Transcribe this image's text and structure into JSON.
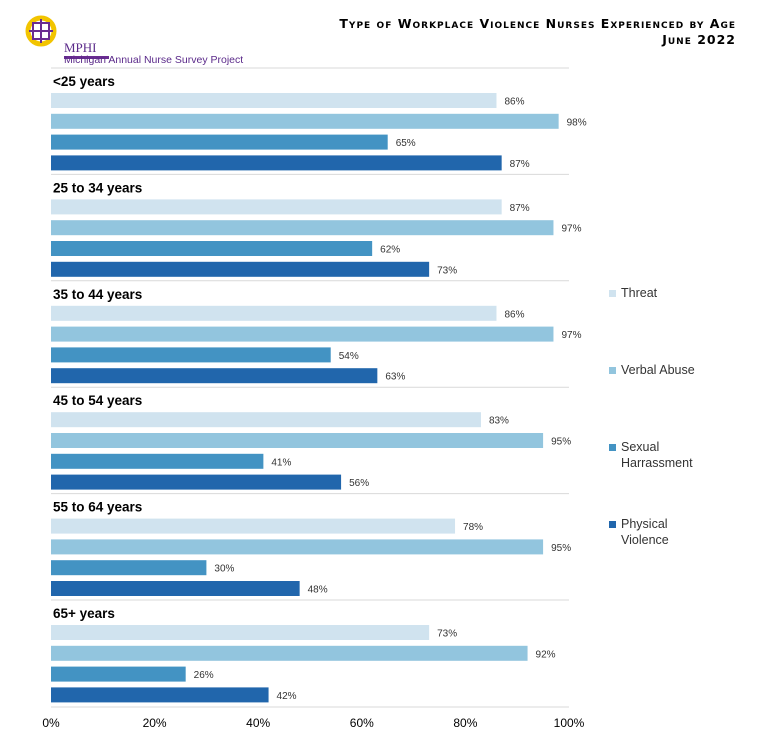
{
  "logo": {
    "name": "MPHI",
    "subtitle": "Michigan Annual Nurse Survey Project"
  },
  "title": "Type of Workplace Violence Nurses Experienced by Age",
  "subtitle": "June 2022",
  "chart_data": {
    "type": "bar",
    "orientation": "horizontal",
    "title": "Type of Workplace Violence Nurses Experienced by Age",
    "subtitle": "June 2022",
    "categories": [
      "<25 years",
      "25 to 34 years",
      "35 to 44 years",
      "45 to 54 years",
      "55 to 64 years",
      "65+ years"
    ],
    "series": [
      {
        "name": "Threat",
        "color": "#d0e3ef",
        "values": [
          86,
          87,
          86,
          83,
          78,
          73
        ]
      },
      {
        "name": "Verbal Abuse",
        "color": "#92c5de",
        "values": [
          98,
          97,
          97,
          95,
          95,
          92
        ]
      },
      {
        "name": "Sexual Harrassment",
        "color": "#4393c3",
        "values": [
          65,
          62,
          54,
          41,
          30,
          26
        ]
      },
      {
        "name": "Physical Violence",
        "color": "#2166ac",
        "values": [
          87,
          73,
          63,
          56,
          48,
          42
        ]
      }
    ],
    "xlim": [
      0,
      100
    ],
    "xticks": [
      "0%",
      "20%",
      "40%",
      "60%",
      "80%",
      "100%"
    ],
    "value_format": "percent",
    "legend": "right",
    "grid": false
  }
}
